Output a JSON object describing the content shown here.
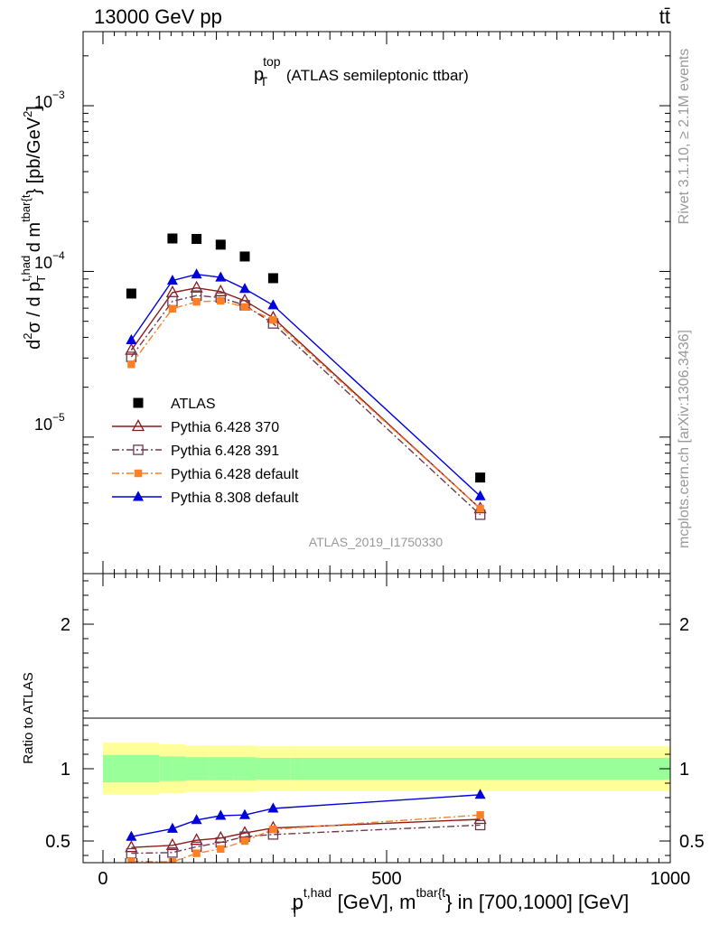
{
  "header": {
    "left": "13000 GeV pp",
    "right": "tt̄"
  },
  "side_labels": {
    "rivet": "Rivet 3.1.10, ≥ 2.1M events",
    "mcplots": "mcplots.cern.ch [arXiv:1306.3436]"
  },
  "chart_data": {
    "type": "scatter",
    "title": "p_T^top (ATLAS semileptonic ttbar)",
    "title_parts": {
      "main": "p",
      "sup": "top",
      "sub": "T",
      "rest": " (ATLAS semileptonic ttbar)"
    },
    "watermark": "ATLAS_2019_I1750330",
    "xlabel": "p_T^{t,had} [GeV], m^{tbar{t}} in [700,1000] [GeV]",
    "xlabel_parts": {
      "main": "p",
      "sub": "T",
      "sup": "t,had",
      "mid": " [GeV], m",
      "sup2": "tbar{t",
      "rest": "} in [700,1000] [GeV]"
    },
    "ylabel": "d²σ / d p_T^{t,had} d m^{tbar{t}} [pb/GeV²]",
    "ratio_ylabel": "Ratio to ATLAS",
    "xlim": [
      -35,
      1000
    ],
    "ylim": [
      1.5e-06,
      0.0028
    ],
    "yscale": "log",
    "ratio_ylim": [
      0.35,
      2.35
    ],
    "x_ticks": [
      "0",
      "500",
      "1000"
    ],
    "y_ticks": [
      "10^-5",
      "10^-4",
      "10^-3"
    ],
    "ratio_ticks": [
      "0.5",
      "1",
      "2"
    ],
    "legend_position": "mid-left",
    "x": [
      50,
      122.5,
      165,
      207.5,
      250,
      300,
      665
    ],
    "bin_edges": [
      0,
      100,
      145,
      185,
      230,
      270,
      330,
      1000
    ],
    "series": [
      {
        "name": "ATLAS",
        "color": "#000000",
        "marker": "square-filled",
        "line": "none",
        "values": [
          7.35e-05,
          0.000158,
          0.000157,
          0.000145,
          0.000123,
          9.1e-05,
          5.7e-06
        ]
      },
      {
        "name": "Pythia 6.428 370",
        "color": "#8b1a1a",
        "marker": "triangle-open",
        "line": "solid",
        "values": [
          3.35e-05,
          7.45e-05,
          7.95e-05,
          7.55e-05,
          6.65e-05,
          5.25e-05,
          3.7e-06
        ],
        "ratio": [
          0.455,
          0.47,
          0.505,
          0.52,
          0.555,
          0.59,
          0.65
        ]
      },
      {
        "name": "Pythia 6.428 391",
        "color": "#6b3a4e",
        "marker": "square-open",
        "line": "dashdot",
        "values": [
          3.05e-05,
          6.6e-05,
          7.15e-05,
          6.95e-05,
          6.25e-05,
          4.85e-05,
          3.4e-06
        ],
        "ratio": [
          0.415,
          0.42,
          0.46,
          0.49,
          0.53,
          0.545,
          0.61
        ]
      },
      {
        "name": "Pythia 6.428 default",
        "color": "#ff7f24",
        "marker": "square-filled-small",
        "line": "dashdot",
        "values": [
          2.75e-05,
          5.95e-05,
          6.55e-05,
          6.65e-05,
          6.1e-05,
          5.1e-05,
          3.7e-06
        ],
        "ratio": [
          0.36,
          0.355,
          0.415,
          0.445,
          0.5,
          0.58,
          0.68
        ]
      },
      {
        "name": "Pythia 8.308 default",
        "color": "#0000dd",
        "marker": "triangle-filled",
        "line": "solid",
        "values": [
          3.85e-05,
          8.8e-05,
          9.6e-05,
          9.2e-05,
          7.85e-05,
          6.25e-05,
          4.4e-06
        ],
        "ratio": [
          0.53,
          0.585,
          0.645,
          0.675,
          0.68,
          0.725,
          0.82
        ]
      }
    ],
    "ratio_band": {
      "green_color": "#99ff99",
      "yellow_color": "#ffff99",
      "inner_halfwidth": [
        0.095,
        0.085,
        0.08,
        0.08,
        0.08,
        0.075,
        0.075
      ],
      "outer_halfwidth": [
        0.18,
        0.17,
        0.16,
        0.16,
        0.16,
        0.155,
        0.155
      ]
    }
  }
}
